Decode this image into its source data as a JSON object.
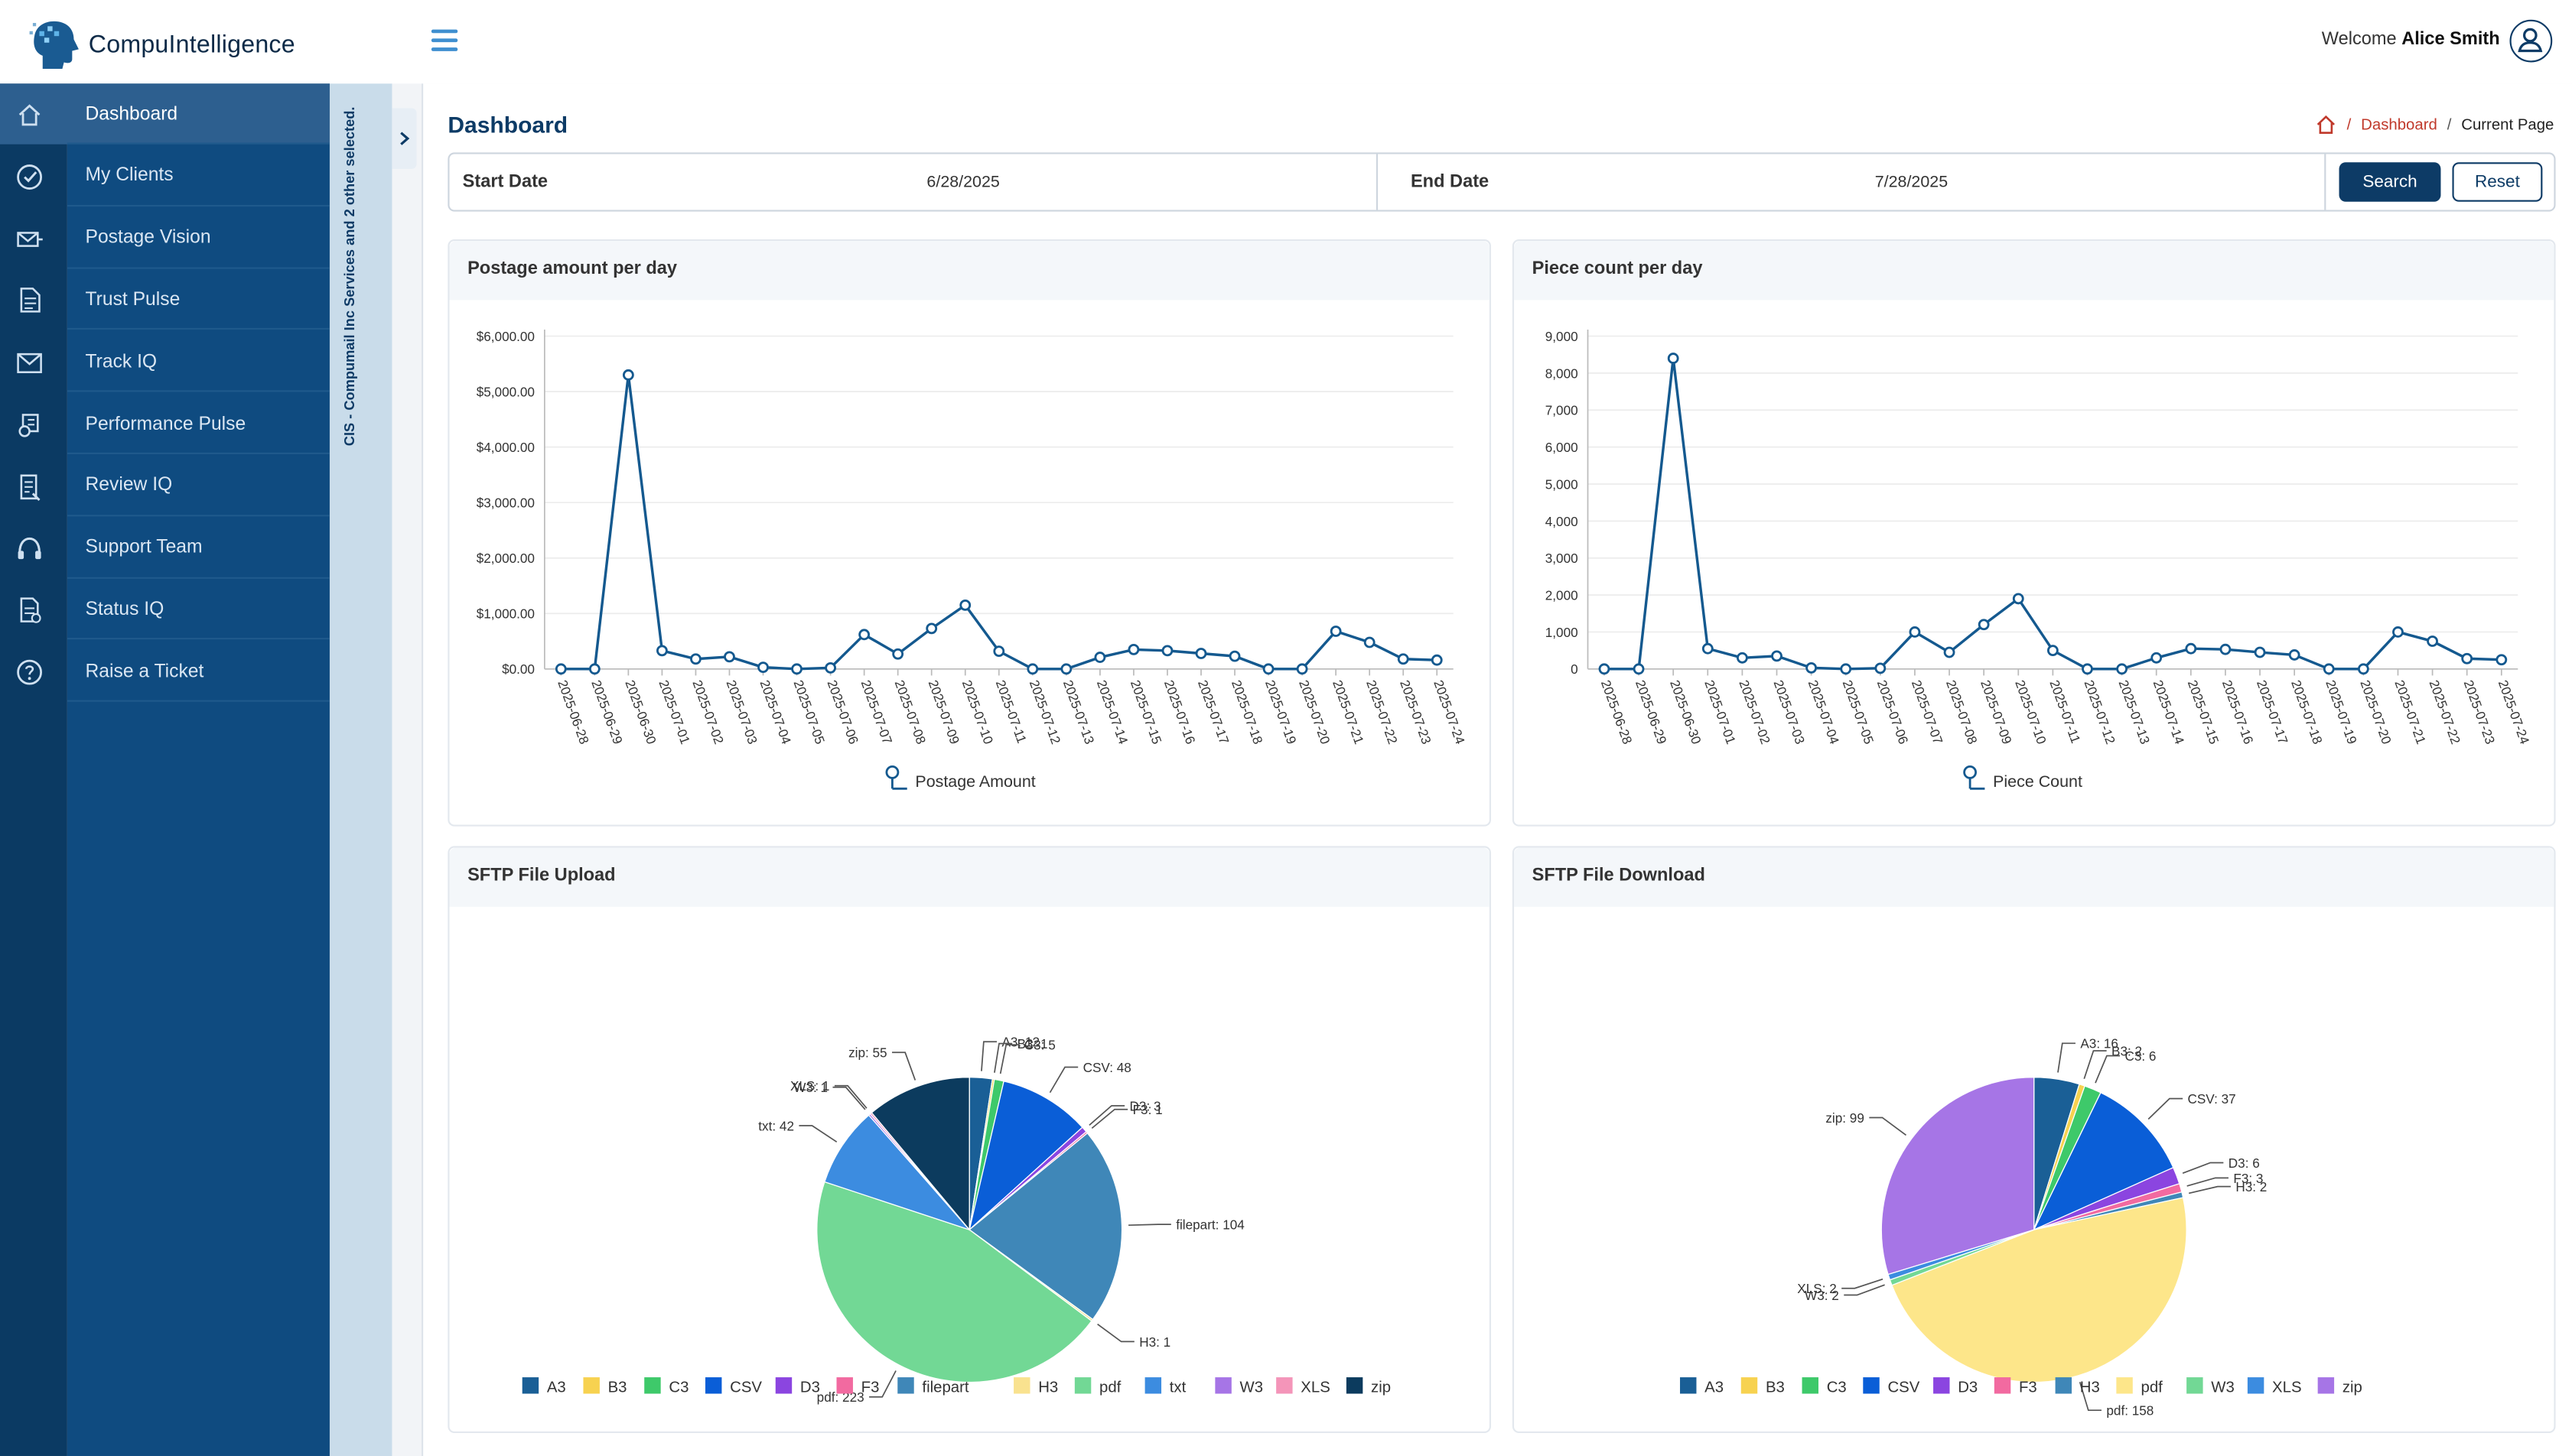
{
  "app": {
    "logo_text": "CompuIntelligence",
    "welcome_prefix": "Welcome",
    "user_name": "Alice Smith"
  },
  "sidebar": {
    "items": [
      {
        "label": "Dashboard",
        "icon": "home-icon"
      },
      {
        "label": "My Clients",
        "icon": "check-circle-icon"
      },
      {
        "label": "Postage Vision",
        "icon": "postage-icon"
      },
      {
        "label": "Trust Pulse",
        "icon": "document-icon"
      },
      {
        "label": "Track IQ",
        "icon": "envelope-icon"
      },
      {
        "label": "Performance Pulse",
        "icon": "performance-icon"
      },
      {
        "label": "Review IQ",
        "icon": "review-icon"
      },
      {
        "label": "Support Team",
        "icon": "headset-icon"
      },
      {
        "label": "Status IQ",
        "icon": "status-icon"
      },
      {
        "label": "Raise a Ticket",
        "icon": "question-icon"
      }
    ],
    "selection_text": "CIS - Compumail Inc Services and 2 other selected."
  },
  "page": {
    "title": "Dashboard",
    "breadcrumb": {
      "link": "Dashboard",
      "current": "Current Page"
    }
  },
  "filter": {
    "start_label": "Start Date",
    "start_value": "6/28/2025",
    "end_label": "End Date",
    "end_value": "7/28/2025",
    "search_label": "Search",
    "reset_label": "Reset"
  },
  "cards": {
    "postage": "Postage amount per day",
    "pieces": "Piece count per day",
    "upload": "SFTP File Upload",
    "download": "SFTP File Download"
  },
  "chart_data": [
    {
      "type": "line",
      "title": "Postage amount per day",
      "x": [
        "2025-06-28",
        "2025-06-29",
        "2025-06-30",
        "2025-07-01",
        "2025-07-02",
        "2025-07-03",
        "2025-07-04",
        "2025-07-05",
        "2025-07-06",
        "2025-07-07",
        "2025-07-08",
        "2025-07-09",
        "2025-07-10",
        "2025-07-11",
        "2025-07-12",
        "2025-07-13",
        "2025-07-14",
        "2025-07-15",
        "2025-07-16",
        "2025-07-17",
        "2025-07-18",
        "2025-07-19",
        "2025-07-20",
        "2025-07-21",
        "2025-07-22",
        "2025-07-23",
        "2025-07-24"
      ],
      "series": [
        {
          "name": "Postage Amount",
          "values": [
            0,
            0,
            5300,
            330,
            180,
            220,
            30,
            0,
            20,
            620,
            270,
            730,
            1150,
            320,
            0,
            0,
            210,
            350,
            330,
            280,
            230,
            0,
            0,
            680,
            480,
            180,
            160
          ]
        }
      ],
      "yticks": [
        "$0.00",
        "$1,000.00",
        "$2,000.00",
        "$3,000.00",
        "$4,000.00",
        "$5,000.00",
        "$6,000.00"
      ],
      "ylim": [
        0,
        6000
      ],
      "grid": true,
      "legend": "bottom",
      "color": "#14598f"
    },
    {
      "type": "line",
      "title": "Piece count per day",
      "x": [
        "2025-06-28",
        "2025-06-29",
        "2025-06-30",
        "2025-07-01",
        "2025-07-02",
        "2025-07-03",
        "2025-07-04",
        "2025-07-05",
        "2025-07-06",
        "2025-07-07",
        "2025-07-08",
        "2025-07-09",
        "2025-07-10",
        "2025-07-11",
        "2025-07-12",
        "2025-07-13",
        "2025-07-14",
        "2025-07-15",
        "2025-07-16",
        "2025-07-17",
        "2025-07-18",
        "2025-07-19",
        "2025-07-20",
        "2025-07-21",
        "2025-07-22",
        "2025-07-23",
        "2025-07-24"
      ],
      "series": [
        {
          "name": "Piece Count",
          "values": [
            0,
            0,
            8400,
            550,
            300,
            350,
            30,
            0,
            20,
            1000,
            450,
            1200,
            1900,
            500,
            0,
            0,
            300,
            550,
            530,
            450,
            380,
            0,
            0,
            1000,
            750,
            280,
            250
          ]
        }
      ],
      "yticks": [
        "0",
        "1,000",
        "2,000",
        "3,000",
        "4,000",
        "5,000",
        "6,000",
        "7,000",
        "8,000",
        "9,000"
      ],
      "ylim": [
        0,
        9000
      ],
      "grid": true,
      "legend": "bottom",
      "color": "#14598f"
    },
    {
      "type": "pie",
      "title": "SFTP File Upload",
      "labels": [
        "A3",
        "B3",
        "C3",
        "CSV",
        "D3",
        "F3",
        "filepart",
        "H3",
        "pdf",
        "txt",
        "W3",
        "XLS",
        "zip"
      ],
      "values": [
        12,
        1,
        5,
        48,
        3,
        1,
        104,
        1,
        223,
        42,
        1,
        1,
        55
      ],
      "colors": [
        "#1a5f96",
        "#f7d250",
        "#3ec96a",
        "#0a5ed7",
        "#8b45e0",
        "#f26aa0",
        "#3f87b8",
        "#f9e28f",
        "#72d895",
        "#3c8ce0",
        "#a675e6",
        "#f495b9",
        "#0c3b5e"
      ],
      "legend": "bottom"
    },
    {
      "type": "pie",
      "title": "SFTP File Download",
      "labels": [
        "A3",
        "B3",
        "C3",
        "CSV",
        "D3",
        "F3",
        "H3",
        "pdf",
        "W3",
        "XLS",
        "zip"
      ],
      "values": [
        16,
        2,
        6,
        37,
        6,
        3,
        2,
        158,
        2,
        2,
        99
      ],
      "colors": [
        "#1a5f96",
        "#f7d250",
        "#3ec96a",
        "#0a5ed7",
        "#8b45e0",
        "#f26aa0",
        "#3f87b8",
        "#fde68a",
        "#72d895",
        "#3c8ce0",
        "#a675e6"
      ],
      "legend": "bottom"
    }
  ]
}
